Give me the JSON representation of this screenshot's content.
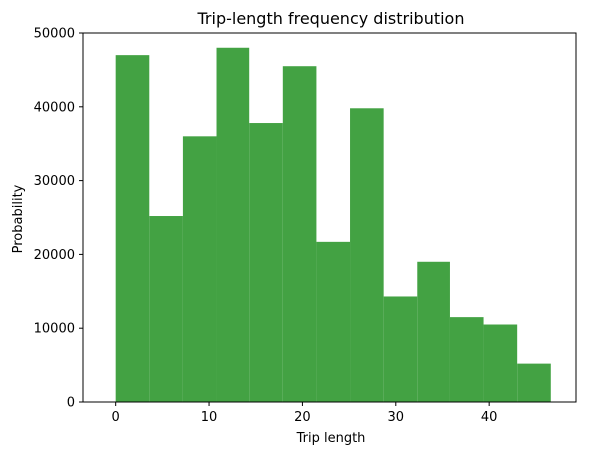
{
  "chart_data": {
    "type": "bar",
    "title": "Trip-length frequency distribution",
    "xlabel": "Trip length",
    "ylabel": "Probability",
    "bar_color": "#43a243",
    "xlim": [
      -3.5,
      49.3
    ],
    "ylim": [
      0,
      50000
    ],
    "xticks": [
      0,
      10,
      20,
      30,
      40
    ],
    "yticks": [
      0,
      10000,
      20000,
      30000,
      40000,
      50000
    ],
    "grid": false,
    "bins": [
      {
        "x0": 0.0,
        "x1": 3.6,
        "value": 47000
      },
      {
        "x0": 3.6,
        "x1": 7.2,
        "value": 25200
      },
      {
        "x0": 7.2,
        "x1": 10.8,
        "value": 36000
      },
      {
        "x0": 10.8,
        "x1": 14.3,
        "value": 48000
      },
      {
        "x0": 14.3,
        "x1": 17.9,
        "value": 37800
      },
      {
        "x0": 17.9,
        "x1": 21.5,
        "value": 45500
      },
      {
        "x0": 21.5,
        "x1": 25.1,
        "value": 21700
      },
      {
        "x0": 25.1,
        "x1": 28.7,
        "value": 39800
      },
      {
        "x0": 28.7,
        "x1": 32.3,
        "value": 14300
      },
      {
        "x0": 32.3,
        "x1": 35.8,
        "value": 19000
      },
      {
        "x0": 35.8,
        "x1": 39.4,
        "value": 11500
      },
      {
        "x0": 39.4,
        "x1": 43.0,
        "value": 10500
      },
      {
        "x0": 43.0,
        "x1": 46.6,
        "value": 5200
      }
    ]
  }
}
